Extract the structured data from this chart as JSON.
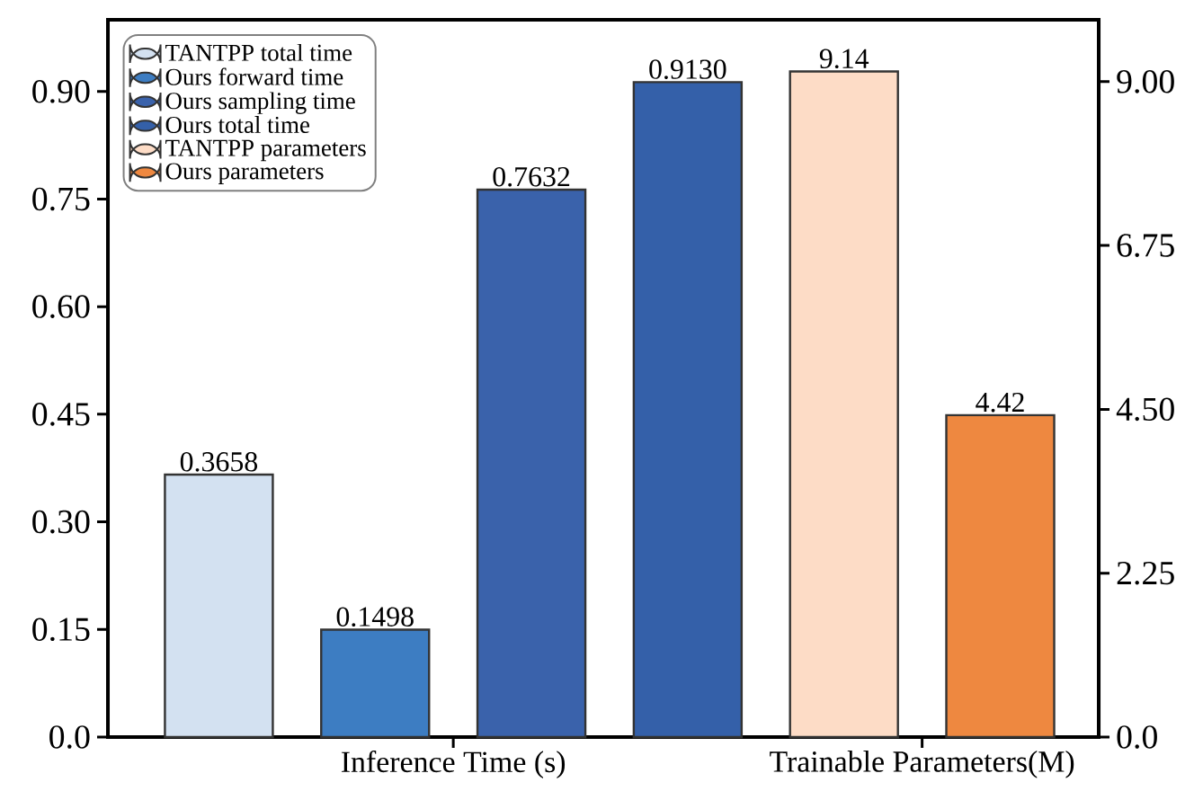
{
  "chart_data": {
    "type": "bar",
    "categories": [
      "Inference Time (s)",
      "Trainable Parameters(M)"
    ],
    "series": [
      {
        "name": "TANTPP total time",
        "color": "#d3e1f1",
        "values": [
          0.3658,
          null
        ],
        "value_labels": [
          "0.3658",
          null
        ]
      },
      {
        "name": "Ours forward time",
        "color": "#3d7dc2",
        "values": [
          0.1498,
          null
        ],
        "value_labels": [
          "0.1498",
          null
        ]
      },
      {
        "name": "Ours sampling time",
        "color": "#3a62ab",
        "values": [
          0.7632,
          null
        ],
        "value_labels": [
          "0.7632",
          null
        ]
      },
      {
        "name": "Ours total time",
        "color": "#3460a9",
        "values": [
          0.913,
          null
        ],
        "value_labels": [
          "0.9130",
          null
        ]
      },
      {
        "name": "TANTPP parameters",
        "color": "#fddcc6",
        "values": [
          null,
          9.14
        ],
        "value_labels": [
          null,
          "9.14"
        ],
        "axis": "y2"
      },
      {
        "name": "Ours parameters",
        "color": "#ee8840",
        "values": [
          null,
          4.42
        ],
        "value_labels": [
          null,
          "4.42"
        ],
        "axis": "y2"
      }
    ],
    "ylim": [
      0,
      1.0
    ],
    "yticks": [
      {
        "value": 0,
        "label": "0.0"
      },
      0.15,
      {
        "value": 0.3,
        "label": "0.30"
      },
      0.45,
      {
        "value": 0.6,
        "label": "0.60"
      },
      0.75,
      {
        "value": 0.9,
        "label": "0.90"
      }
    ],
    "y2lim": [
      0,
      9.85
    ],
    "y2ticks": [
      {
        "value": 0,
        "label": "0.0"
      },
      2.25,
      {
        "value": 4.5,
        "label": "4.50"
      },
      6.75,
      {
        "value": 9,
        "label": "9.00"
      }
    ],
    "legend": "top left",
    "grid": false
  }
}
